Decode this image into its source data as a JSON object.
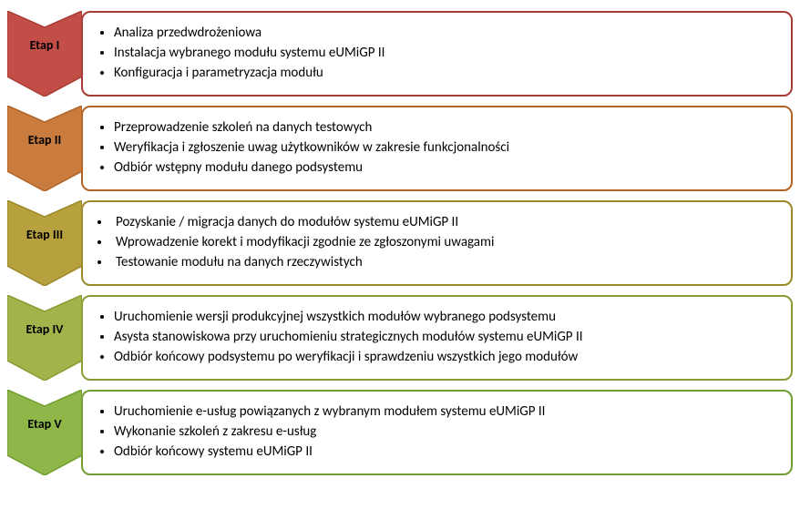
{
  "diagram": {
    "type": "process-arrows",
    "font_family": "Calibri",
    "item_fontsize": 15,
    "label_fontsize": 14,
    "label_fontweight": "bold",
    "background_color": "#ffffff",
    "box_border_radius": 10,
    "box_border_width": 2,
    "arrow_width": 82,
    "stages": [
      {
        "label": "Etap I",
        "fill": "#c34e47",
        "stroke": "#a83b34",
        "tight": false,
        "items": [
          "Analiza  przedwdrożeniowa",
          "Instalacja wybranego modułu systemu eUMiGP II",
          "Konfiguracja i parametryzacja modułu"
        ]
      },
      {
        "label": "Etap II",
        "fill": "#c97c3e",
        "stroke": "#b06428",
        "tight": false,
        "items": [
          "Przeprowadzenie szkoleń na danych testowych",
          "Weryfikacja i zgłoszenie  uwag użytkowników w zakresie funkcjonalności",
          "Odbiór wstępny modułu danego podsystemu"
        ]
      },
      {
        "label": "Etap  III",
        "fill": "#b7a13f",
        "stroke": "#9d8829",
        "tight": true,
        "items": [
          "Pozyskanie / migracja danych do modułów systemu eUMiGP II",
          "Wprowadzenie korekt i modyfikacji zgodnie ze zgłoszonymi uwagami",
          "Testowanie modułu na danych rzeczywistych"
        ]
      },
      {
        "label": "Etap IV",
        "fill": "#a1b44b",
        "stroke": "#879c33",
        "tight": false,
        "items": [
          "Uruchomienie  wersji produkcyjnej wszystkich modułów wybranego podsystemu",
          "Asysta stanowiskowa przy uruchomieniu strategicznych modułów  systemu eUMiGP II",
          "Odbiór końcowy podsystemu po weryfikacji i sprawdzeniu wszystkich jego modułów"
        ]
      },
      {
        "label": "Etap  V",
        "fill": "#8fb649",
        "stroke": "#729e30",
        "tight": false,
        "items": [
          "Uruchomienie e-usług powiązanych z wybranym modułem systemu eUMiGP II",
          "Wykonanie szkoleń z zakresu e-usług",
          "Odbiór końcowy systemu eUMiGP II"
        ]
      }
    ]
  }
}
